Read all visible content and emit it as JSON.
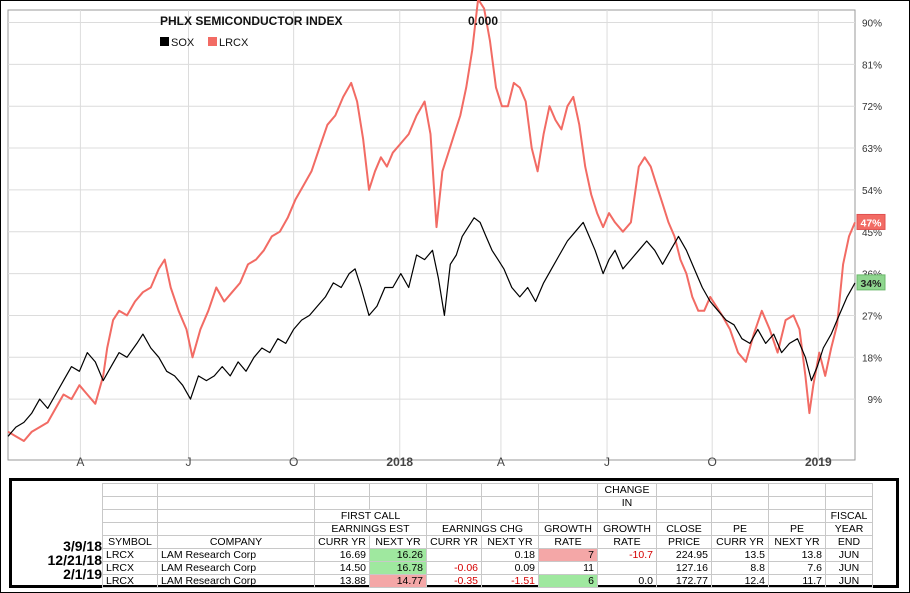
{
  "chart_data": {
    "type": "line",
    "title": "PHLX SEMICONDUCTOR INDEX",
    "title_value": "0.000",
    "legend_position": "top-left",
    "x_ticks": [
      "A",
      "J",
      "O",
      "2018",
      "A",
      "J",
      "O",
      "2019"
    ],
    "y_ticks": [
      "90%",
      "81%",
      "72%",
      "63%",
      "54%",
      "45%",
      "36%",
      "27%",
      "18%",
      "9%"
    ],
    "ylim": [
      0,
      92
    ],
    "grid": true,
    "series": [
      {
        "name": "SOX",
        "color": "#000000",
        "end_label": "34%",
        "values": [
          [
            0,
            1
          ],
          [
            8,
            3
          ],
          [
            16,
            4
          ],
          [
            24,
            6
          ],
          [
            32,
            9
          ],
          [
            40,
            7
          ],
          [
            48,
            10
          ],
          [
            56,
            13
          ],
          [
            64,
            16
          ],
          [
            72,
            15
          ],
          [
            80,
            19
          ],
          [
            88,
            17
          ],
          [
            96,
            13
          ],
          [
            104,
            16
          ],
          [
            112,
            19
          ],
          [
            120,
            18
          ],
          [
            130,
            21
          ],
          [
            136,
            23
          ],
          [
            144,
            20
          ],
          [
            152,
            18
          ],
          [
            160,
            15
          ],
          [
            168,
            14
          ],
          [
            176,
            12
          ],
          [
            184,
            9
          ],
          [
            192,
            14
          ],
          [
            200,
            13
          ],
          [
            208,
            14
          ],
          [
            216,
            16
          ],
          [
            224,
            14
          ],
          [
            232,
            17
          ],
          [
            240,
            15
          ],
          [
            248,
            18
          ],
          [
            256,
            20
          ],
          [
            264,
            19
          ],
          [
            272,
            22
          ],
          [
            280,
            21
          ],
          [
            288,
            24
          ],
          [
            296,
            26
          ],
          [
            304,
            27
          ],
          [
            312,
            29
          ],
          [
            320,
            31
          ],
          [
            328,
            34
          ],
          [
            336,
            33
          ],
          [
            344,
            36
          ],
          [
            350,
            37
          ],
          [
            356,
            33
          ],
          [
            364,
            27
          ],
          [
            372,
            29
          ],
          [
            380,
            33
          ],
          [
            388,
            33
          ],
          [
            396,
            36
          ],
          [
            404,
            33
          ],
          [
            412,
            40
          ],
          [
            420,
            39
          ],
          [
            428,
            41
          ],
          [
            434,
            35
          ],
          [
            440,
            27
          ],
          [
            446,
            38
          ],
          [
            452,
            40
          ],
          [
            458,
            44
          ],
          [
            464,
            46
          ],
          [
            470,
            48
          ],
          [
            476,
            47
          ],
          [
            482,
            44
          ],
          [
            488,
            41
          ],
          [
            494,
            39
          ],
          [
            500,
            37
          ],
          [
            508,
            33
          ],
          [
            516,
            31
          ],
          [
            524,
            33
          ],
          [
            532,
            30
          ],
          [
            540,
            34
          ],
          [
            548,
            37
          ],
          [
            556,
            40
          ],
          [
            564,
            43
          ],
          [
            572,
            45
          ],
          [
            580,
            47
          ],
          [
            586,
            44
          ],
          [
            592,
            41
          ],
          [
            600,
            36
          ],
          [
            606,
            39
          ],
          [
            612,
            41
          ],
          [
            620,
            37
          ],
          [
            628,
            39
          ],
          [
            636,
            41
          ],
          [
            644,
            43
          ],
          [
            652,
            41
          ],
          [
            660,
            38
          ],
          [
            668,
            41
          ],
          [
            676,
            44
          ],
          [
            684,
            41
          ],
          [
            692,
            37
          ],
          [
            700,
            33
          ],
          [
            708,
            30
          ],
          [
            716,
            28
          ],
          [
            724,
            26
          ],
          [
            732,
            25
          ],
          [
            740,
            22
          ],
          [
            748,
            21
          ],
          [
            756,
            24
          ],
          [
            764,
            21
          ],
          [
            772,
            23
          ],
          [
            780,
            19
          ],
          [
            788,
            21
          ],
          [
            796,
            22
          ],
          [
            804,
            18
          ],
          [
            810,
            13
          ],
          [
            816,
            16
          ],
          [
            822,
            20
          ],
          [
            830,
            23
          ],
          [
            838,
            27
          ],
          [
            846,
            31
          ],
          [
            854,
            34
          ]
        ]
      },
      {
        "name": "LRCX",
        "color": "#f26b64",
        "end_label": "47%",
        "values": [
          [
            0,
            2
          ],
          [
            8,
            1
          ],
          [
            16,
            0
          ],
          [
            24,
            2
          ],
          [
            32,
            3
          ],
          [
            40,
            4
          ],
          [
            48,
            7
          ],
          [
            56,
            10
          ],
          [
            64,
            9
          ],
          [
            72,
            12
          ],
          [
            80,
            10
          ],
          [
            88,
            8
          ],
          [
            96,
            14
          ],
          [
            100,
            20
          ],
          [
            106,
            26
          ],
          [
            112,
            28
          ],
          [
            120,
            27
          ],
          [
            128,
            30
          ],
          [
            136,
            32
          ],
          [
            144,
            33
          ],
          [
            152,
            37
          ],
          [
            158,
            39
          ],
          [
            164,
            33
          ],
          [
            172,
            28
          ],
          [
            180,
            24
          ],
          [
            186,
            18
          ],
          [
            194,
            24
          ],
          [
            202,
            28
          ],
          [
            210,
            33
          ],
          [
            218,
            30
          ],
          [
            226,
            32
          ],
          [
            234,
            34
          ],
          [
            242,
            38
          ],
          [
            250,
            39
          ],
          [
            258,
            41
          ],
          [
            266,
            44
          ],
          [
            274,
            45
          ],
          [
            282,
            48
          ],
          [
            290,
            52
          ],
          [
            298,
            55
          ],
          [
            306,
            58
          ],
          [
            314,
            63
          ],
          [
            322,
            68
          ],
          [
            330,
            70
          ],
          [
            338,
            74
          ],
          [
            346,
            77
          ],
          [
            352,
            73
          ],
          [
            358,
            65
          ],
          [
            364,
            54
          ],
          [
            370,
            58
          ],
          [
            376,
            61
          ],
          [
            382,
            59
          ],
          [
            388,
            62
          ],
          [
            396,
            64
          ],
          [
            404,
            66
          ],
          [
            412,
            70
          ],
          [
            420,
            73
          ],
          [
            426,
            66
          ],
          [
            432,
            46
          ],
          [
            438,
            58
          ],
          [
            444,
            62
          ],
          [
            450,
            66
          ],
          [
            456,
            70
          ],
          [
            462,
            76
          ],
          [
            468,
            84
          ],
          [
            474,
            95
          ],
          [
            480,
            93
          ],
          [
            486,
            86
          ],
          [
            492,
            76
          ],
          [
            498,
            72
          ],
          [
            504,
            72
          ],
          [
            510,
            77
          ],
          [
            516,
            76
          ],
          [
            522,
            73
          ],
          [
            528,
            63
          ],
          [
            534,
            58
          ],
          [
            540,
            66
          ],
          [
            546,
            72
          ],
          [
            552,
            69
          ],
          [
            558,
            67
          ],
          [
            564,
            72
          ],
          [
            570,
            74
          ],
          [
            576,
            68
          ],
          [
            582,
            59
          ],
          [
            588,
            53
          ],
          [
            594,
            49
          ],
          [
            600,
            46
          ],
          [
            606,
            49
          ],
          [
            612,
            47
          ],
          [
            620,
            45
          ],
          [
            628,
            47
          ],
          [
            636,
            59
          ],
          [
            642,
            61
          ],
          [
            648,
            59
          ],
          [
            654,
            55
          ],
          [
            660,
            51
          ],
          [
            666,
            47
          ],
          [
            672,
            44
          ],
          [
            678,
            39
          ],
          [
            684,
            36
          ],
          [
            690,
            31
          ],
          [
            696,
            28
          ],
          [
            702,
            28
          ],
          [
            708,
            31
          ],
          [
            714,
            29
          ],
          [
            720,
            27
          ],
          [
            728,
            24
          ],
          [
            736,
            19
          ],
          [
            744,
            17
          ],
          [
            752,
            23
          ],
          [
            760,
            28
          ],
          [
            768,
            24
          ],
          [
            776,
            19
          ],
          [
            784,
            26
          ],
          [
            792,
            27
          ],
          [
            798,
            24
          ],
          [
            804,
            14
          ],
          [
            808,
            6
          ],
          [
            812,
            12
          ],
          [
            818,
            19
          ],
          [
            824,
            14
          ],
          [
            830,
            20
          ],
          [
            836,
            25
          ],
          [
            842,
            38
          ],
          [
            848,
            44
          ],
          [
            854,
            47
          ]
        ]
      }
    ]
  },
  "table": {
    "group_headers": {
      "first_call": "FIRST CALL",
      "earnings_est": "EARNINGS EST",
      "earnings_chg": "EARNINGS CHG",
      "growth": "GROWTH",
      "change": "CHANGE",
      "in": "IN",
      "growth2": "GROWTH",
      "close": "CLOSE",
      "pe1": "PE",
      "pe2": "PE",
      "fiscal": "FISCAL",
      "year": "YEAR"
    },
    "columns": [
      "SYMBOL",
      "COMPANY",
      "CURR YR",
      "NEXT YR",
      "CURR YR",
      "NEXT YR",
      "RATE",
      "RATE",
      "PRICE",
      "CURR YR",
      "NEXT YR",
      "END"
    ],
    "rows": [
      {
        "date": "3/9/18",
        "symbol": "LRCX",
        "company": "LAM Research Corp",
        "est_curr": "16.69",
        "est_next": "16.26",
        "chg_curr": "",
        "chg_next": "0.18",
        "growth_rate": "7",
        "change_rate": "-10.7",
        "close": "224.95",
        "pe_curr": "13.5",
        "pe_next": "13.8",
        "fiscal": "JUN"
      },
      {
        "date": "12/21/18",
        "symbol": "LRCX",
        "company": "LAM Research Corp",
        "est_curr": "14.50",
        "est_next": "16.78",
        "chg_curr": "-0.06",
        "chg_next": "0.09",
        "growth_rate": "11",
        "change_rate": "",
        "close": "127.16",
        "pe_curr": "8.8",
        "pe_next": "7.6",
        "fiscal": "JUN"
      },
      {
        "date": "2/1/19",
        "symbol": "LRCX",
        "company": "LAM Research Corp",
        "est_curr": "13.88",
        "est_next": "14.77",
        "chg_curr": "-0.35",
        "chg_next": "-1.51",
        "growth_rate": "6",
        "change_rate": "0.0",
        "close": "172.77",
        "pe_curr": "12.4",
        "pe_next": "11.7",
        "fiscal": "JUN"
      }
    ]
  }
}
